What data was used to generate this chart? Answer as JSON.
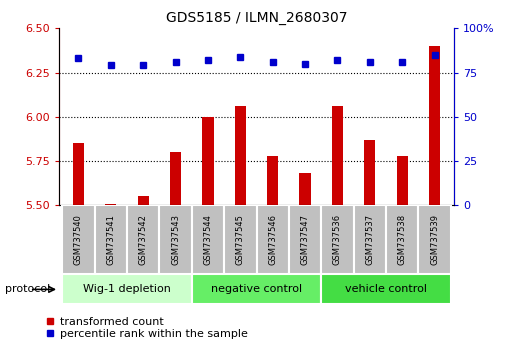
{
  "title": "GDS5185 / ILMN_2680307",
  "samples": [
    "GSM737540",
    "GSM737541",
    "GSM737542",
    "GSM737543",
    "GSM737544",
    "GSM737545",
    "GSM737546",
    "GSM737547",
    "GSM737536",
    "GSM737537",
    "GSM737538",
    "GSM737539"
  ],
  "transformed_count": [
    5.85,
    5.51,
    5.55,
    5.8,
    6.0,
    6.06,
    5.78,
    5.68,
    6.06,
    5.87,
    5.78,
    6.4
  ],
  "percentile_rank": [
    83,
    79,
    79,
    81,
    82,
    84,
    81,
    80,
    82,
    81,
    81,
    85
  ],
  "ylim_left": [
    5.5,
    6.5
  ],
  "ylim_right": [
    0,
    100
  ],
  "yticks_left": [
    5.5,
    5.75,
    6.0,
    6.25,
    6.5
  ],
  "yticks_right": [
    0,
    25,
    50,
    75,
    100
  ],
  "groups": [
    {
      "label": "Wig-1 depletion",
      "indices": [
        0,
        1,
        2,
        3
      ],
      "color": "#ccffcc"
    },
    {
      "label": "negative control",
      "indices": [
        4,
        5,
        6,
        7
      ],
      "color": "#66ee66"
    },
    {
      "label": "vehicle control",
      "indices": [
        8,
        9,
        10,
        11
      ],
      "color": "#44dd44"
    }
  ],
  "bar_color": "#cc0000",
  "dot_color": "#0000cc",
  "bar_bottom": 5.5,
  "bar_width": 0.35,
  "grid_color": "#000000",
  "label_box_color": "#c0c0c0",
  "tick_label_color_left": "#cc0000",
  "tick_label_color_right": "#0000cc",
  "legend_red_label": "transformed count",
  "legend_blue_label": "percentile rank within the sample",
  "protocol_label": "protocol"
}
